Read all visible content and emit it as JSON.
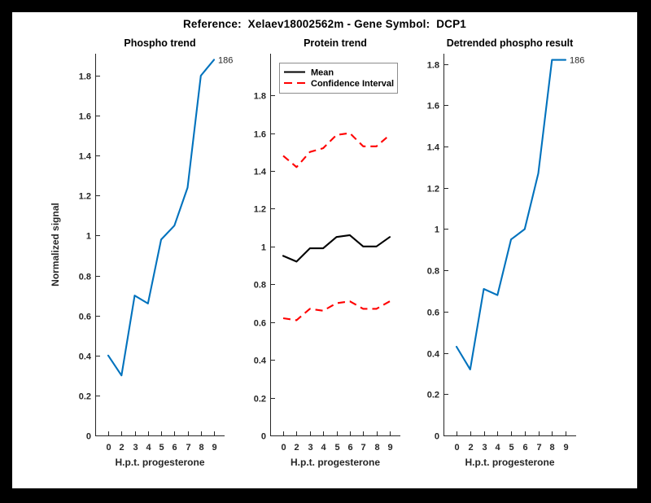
{
  "figure": {
    "title": "Reference:  Xelaev18002562m - Gene Symbol:  DCP1",
    "frame_color": "#000000",
    "background": "#ffffff"
  },
  "palette": {
    "blue": "#0072BD",
    "red": "#ff0000",
    "black": "#000000",
    "axis": "#262626"
  },
  "chart_data": [
    {
      "type": "line",
      "title": "Phospho trend",
      "xlabel": "H.p.t. progesterone",
      "ylabel": "Normalized signal",
      "x": [
        0,
        2,
        3,
        4,
        5,
        6,
        7,
        8,
        9
      ],
      "x_ticklabels": [
        "0",
        "2",
        "3",
        "4",
        "5",
        "6",
        "7",
        "8",
        "9"
      ],
      "y_ticks": [
        0,
        0.2,
        0.4,
        0.6,
        0.8,
        1,
        1.2,
        1.4,
        1.6,
        1.8
      ],
      "ylim": [
        0,
        1.91
      ],
      "grid": false,
      "legend": null,
      "series": [
        {
          "name": "phospho-trend",
          "color": "#0072BD",
          "dash": false,
          "width": 2.1,
          "values": [
            0.4,
            0.3,
            0.7,
            0.66,
            0.98,
            1.05,
            1.24,
            1.8,
            1.88
          ]
        }
      ],
      "annotation": {
        "text": "186",
        "anchor": "line-end"
      }
    },
    {
      "type": "line",
      "title": "Protein trend",
      "xlabel": "H.p.t. progesterone",
      "ylabel": "",
      "x": [
        0,
        2,
        3,
        4,
        5,
        6,
        7,
        8,
        9
      ],
      "x_ticklabels": [
        "0",
        "2",
        "3",
        "4",
        "5",
        "6",
        "7",
        "8",
        "9"
      ],
      "y_ticks": [
        0,
        0.2,
        0.4,
        0.6,
        0.8,
        1,
        1.2,
        1.4,
        1.6,
        1.8
      ],
      "ylim": [
        0,
        2.02
      ],
      "grid": false,
      "legend": {
        "position": "top-left",
        "entries": [
          {
            "label": "Mean",
            "color": "#000000",
            "dash": false
          },
          {
            "label": "Confidence Interval",
            "color": "#ff0000",
            "dash": true
          }
        ]
      },
      "series": [
        {
          "name": "mean",
          "color": "#000000",
          "dash": false,
          "width": 2.1,
          "values": [
            0.95,
            0.92,
            0.99,
            0.99,
            1.05,
            1.06,
            1.0,
            1.0,
            1.05
          ]
        },
        {
          "name": "confidence-interval-upper",
          "color": "#ff0000",
          "dash": true,
          "width": 2.1,
          "values": [
            1.48,
            1.42,
            1.5,
            1.52,
            1.59,
            1.6,
            1.53,
            1.53,
            1.59
          ]
        },
        {
          "name": "confidence-interval-lower",
          "color": "#ff0000",
          "dash": true,
          "width": 2.1,
          "values": [
            0.62,
            0.61,
            0.67,
            0.66,
            0.7,
            0.71,
            0.67,
            0.67,
            0.71
          ]
        }
      ],
      "annotation": null
    },
    {
      "type": "line",
      "title": "Detrended phospho result",
      "xlabel": "H.p.t. progesterone",
      "ylabel": "",
      "x": [
        0,
        2,
        3,
        4,
        5,
        6,
        7,
        8,
        9
      ],
      "x_ticklabels": [
        "0",
        "2",
        "3",
        "4",
        "5",
        "6",
        "7",
        "8",
        "9"
      ],
      "y_ticks": [
        0,
        0.2,
        0.4,
        0.6,
        0.8,
        1,
        1.2,
        1.4,
        1.6,
        1.8
      ],
      "ylim": [
        0,
        1.85
      ],
      "grid": false,
      "legend": null,
      "series": [
        {
          "name": "detrended-phospho",
          "color": "#0072BD",
          "dash": false,
          "width": 2.1,
          "values": [
            0.43,
            0.32,
            0.71,
            0.68,
            0.95,
            1.0,
            1.27,
            1.82,
            1.82
          ]
        }
      ],
      "annotation": {
        "text": "186",
        "anchor": "line-end"
      }
    }
  ]
}
